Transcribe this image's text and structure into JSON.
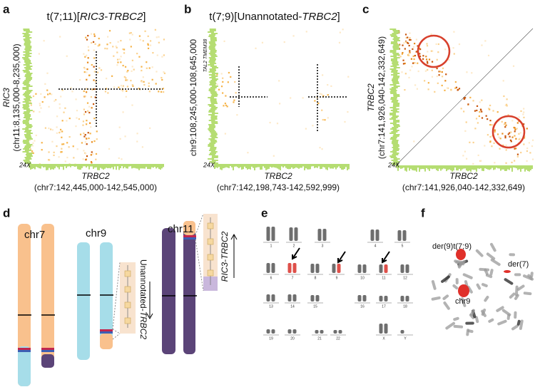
{
  "panels": {
    "a": {
      "letter": "a",
      "title": {
        "prefix": "t(7;11)[",
        "gene": "RIC3-TRBC2",
        "suffix": "]"
      },
      "y_gene": "RIC3",
      "y_coords": "(chr11:8,135,000-8,235,000)",
      "x_gene": "TRBC2",
      "x_coords": "(chr7:142,445,000-142,545,000)",
      "coverage": "24X"
    },
    "b": {
      "letter": "b",
      "title": {
        "prefix": "t(7;9)[Unannotated-",
        "gene": "TRBC2",
        "suffix": "]"
      },
      "y_coords": "chr9:108,245,000-108,645,000",
      "y_genes": "TAL2 TMEM38",
      "x_gene": "TRBC2",
      "x_coords": "(chr7:142,198,743-142,592,999)",
      "coverage": "24X"
    },
    "c": {
      "letter": "c",
      "y_gene": "TRBC2",
      "y_coords": "(chr7:141,926,040-142,332,649)",
      "x_gene": "TRBC2",
      "x_coords": "(chr7:141,926,040-142,332,649)",
      "coverage": "24X"
    },
    "d": {
      "letter": "d",
      "chromosomes": [
        "chr7",
        "chr9",
        "chr11"
      ],
      "fusions": {
        "chr9": {
          "prefix": "Unannotated-",
          "gene": "TRBC2"
        },
        "chr11": {
          "gene": "RIC3-TRBC2"
        }
      }
    },
    "e": {
      "letter": "e",
      "labels": [
        "1",
        "2",
        "3",
        "4",
        "5",
        "6",
        "7",
        "8",
        "9",
        "10",
        "11",
        "12",
        "13",
        "14",
        "15",
        "16",
        "17",
        "18",
        "19",
        "20",
        "21",
        "22",
        "X",
        "Y"
      ]
    },
    "f": {
      "letter": "f",
      "labels": [
        "der(9)t(7;9)",
        "der(7)",
        "chr9"
      ]
    }
  }
}
